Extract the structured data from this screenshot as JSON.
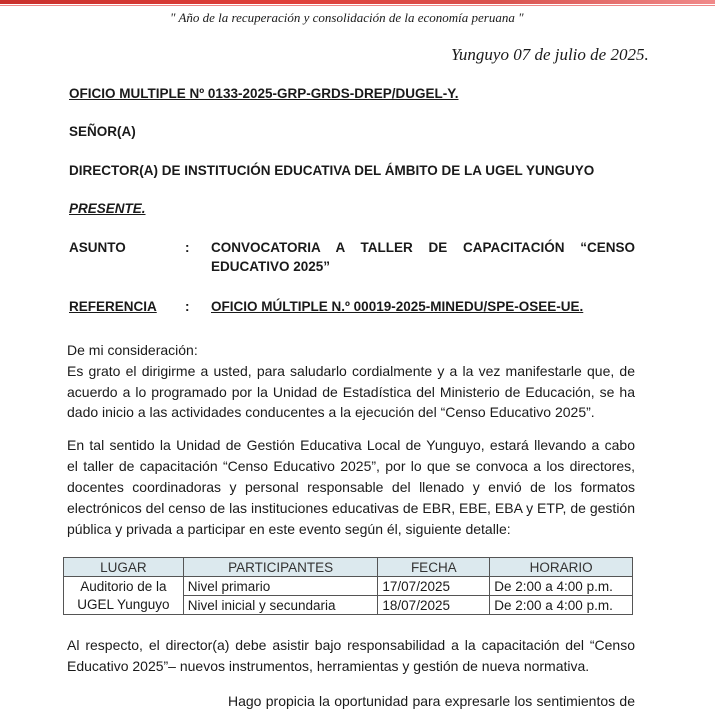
{
  "motto": "\" Año de la recuperación y consolidación de la economía peruana \"",
  "date_line": "Yunguyo 07 de julio de 2025.",
  "oficio": "OFICIO MULTIPLE Nº 0133-2025-GRP-GRDS-DREP/DUGEL-Y.",
  "senor": "SEÑOR(A)",
  "destinatario": "DIRECTOR(A) DE INSTITUCIÓN EDUCATIVA DEL ÁMBITO DE LA UGEL YUNGUYO",
  "presente": "PRESENTE.",
  "asunto": {
    "label": "ASUNTO",
    "sep": ":",
    "line1": "CONVOCATORIA A TALLER DE CAPACITACIÓN “CENSO",
    "line2": "EDUCATIVO 2025”"
  },
  "referencia": {
    "label": "REFERENCIA",
    "sep": ":",
    "value": "OFICIO MÚLTIPLE N.º 00019-2025-MINEDU/SPE-OSEE-UE."
  },
  "greeting": "De mi consideración:",
  "paragraph1": [
    "Es grato el dirigirme a usted, para saludarlo cordialmente y a la vez manifestarle que, de",
    "acuerdo a lo programado por la Unidad de Estadística del Ministerio de Educación, se ha",
    "dado inicio a las actividades conducentes a la ejecución del “Censo Educativo 2025”."
  ],
  "paragraph2": [
    "En tal sentido la Unidad de Gestión Educativa Local de Yunguyo, estará llevando a cabo",
    "el taller de capacitación “Censo Educativo 2025”, por lo que se convoca a los directores,",
    "docentes coordinadoras y personal responsable del llenado y envió de los formatos",
    "electrónicos del censo de las instituciones educativas de EBR, EBE, EBA y ETP, de gestión",
    "pública y privada a participar en este evento según él, siguiente detalle:"
  ],
  "table": {
    "headers": [
      "LUGAR",
      "PARTICIPANTES",
      "FECHA",
      "HORARIO"
    ],
    "lugar_line1": "Auditorio de la",
    "lugar_line2": "UGEL Yunguyo",
    "rows": [
      {
        "participantes": "Nivel primario",
        "fecha": "17/07/2025",
        "horario": "De 2:00 a 4:00 p.m."
      },
      {
        "participantes": "Nivel inicial y secundaria",
        "fecha": "18/07/2025",
        "horario": "De 2:00 a 4:00 p.m."
      }
    ]
  },
  "paragraph3": [
    "Al respecto, el director(a) debe asistir bajo responsabilidad a la capacitación del “Censo",
    "Educativo 2025”– nuevos instrumentos, herramientas y gestión de nueva normativa."
  ],
  "closing": "Hago propicia la oportunidad para expresarle los sentimientos de"
}
